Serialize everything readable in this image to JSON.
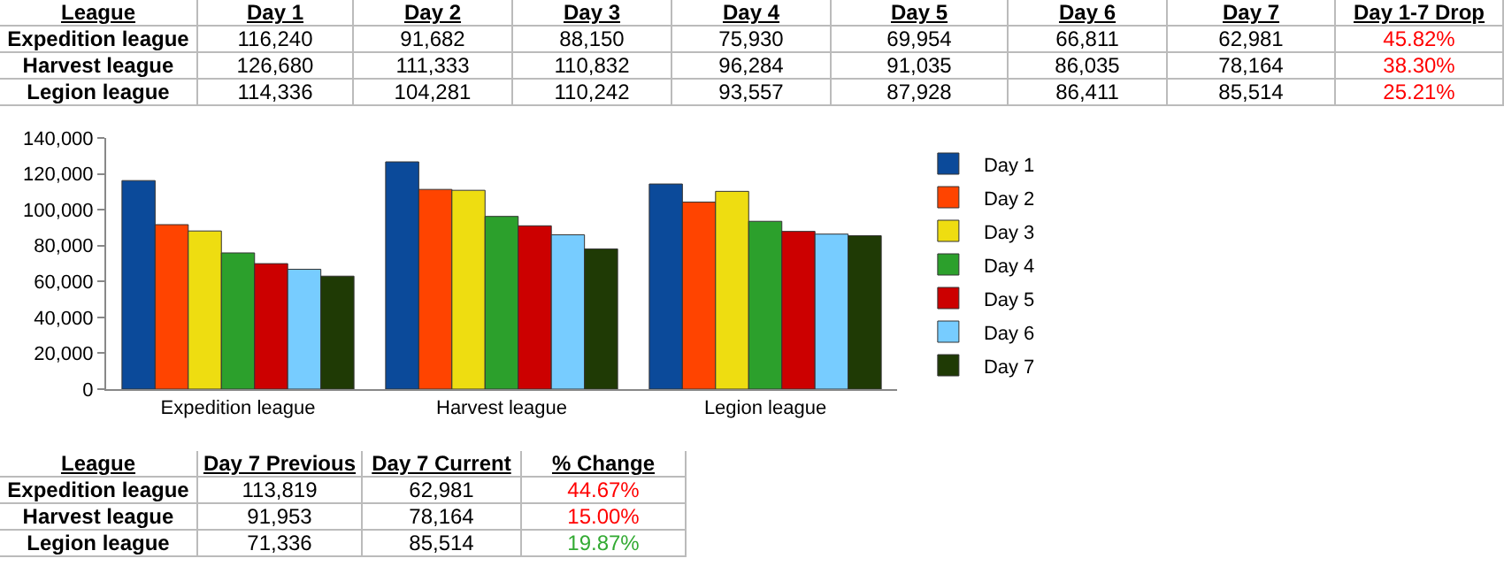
{
  "chart_data": [
    {
      "type": "other",
      "categories": [
        "League",
        "Day 1",
        "Day 2",
        "Day 3",
        "Day 4",
        "Day 5",
        "Day 6",
        "Day 7",
        "Day 1-7 Drop"
      ],
      "y_categories": [
        "Expedition league",
        "Harvest league",
        "Legion league"
      ],
      "cell_labels": [
        [
          "116,240",
          "91,682",
          "88,150",
          "75,930",
          "69,954",
          "66,811",
          "62,981",
          "45.82%"
        ],
        [
          "126,680",
          "111,333",
          "110,832",
          "96,284",
          "91,035",
          "86,035",
          "78,164",
          "38.30%"
        ],
        [
          "114,336",
          "104,281",
          "110,242",
          "93,557",
          "87,928",
          "86,411",
          "85,514",
          "25.21%"
        ]
      ],
      "colors": [
        "#ff0000",
        "#ff0000",
        "#ff0000"
      ]
    },
    {
      "type": "bar",
      "categories": [
        "Expedition league",
        "Harvest league",
        "Legion league"
      ],
      "series": [
        {
          "name": "Day 1",
          "color": "#0b4a9a",
          "values": [
            116240,
            126680,
            114336
          ]
        },
        {
          "name": "Day 2",
          "color": "#ff4400",
          "values": [
            91682,
            111333,
            104281
          ]
        },
        {
          "name": "Day 3",
          "color": "#eedd11",
          "values": [
            88150,
            110832,
            110242
          ]
        },
        {
          "name": "Day 4",
          "color": "#2ca02c",
          "values": [
            75930,
            96284,
            93557
          ]
        },
        {
          "name": "Day 5",
          "color": "#cc0000",
          "values": [
            69954,
            91035,
            87928
          ]
        },
        {
          "name": "Day 6",
          "color": "#77ccff",
          "values": [
            66811,
            86035,
            86411
          ]
        },
        {
          "name": "Day 7",
          "color": "#1f3a05",
          "values": [
            62981,
            78164,
            85514
          ]
        }
      ],
      "ylim": [
        0,
        140000
      ],
      "yticks": [
        {
          "value": 0,
          "label": "0"
        },
        {
          "value": 20000,
          "label": "20,000"
        },
        {
          "value": 40000,
          "label": "40,000"
        },
        {
          "value": 60000,
          "label": "60,000"
        },
        {
          "value": 80000,
          "label": "80,000"
        },
        {
          "value": 100000,
          "label": "100,000"
        },
        {
          "value": 120000,
          "label": "120,000"
        },
        {
          "value": 140000,
          "label": "140,000"
        }
      ],
      "legend": "right"
    },
    {
      "type": "other",
      "categories": [
        "League",
        "Day 7 Previous",
        "Day 7 Current",
        "% Change"
      ],
      "y_categories": [
        "Expedition league",
        "Harvest league",
        "Legion league"
      ],
      "cell_labels": [
        [
          "113,819",
          "62,981",
          "44.67%"
        ],
        [
          "91,953",
          "78,164",
          "15.00%"
        ],
        [
          "71,336",
          "85,514",
          "19.87%"
        ]
      ],
      "colors": [
        "#ff0000",
        "#ff0000",
        "#33aa33"
      ]
    }
  ]
}
